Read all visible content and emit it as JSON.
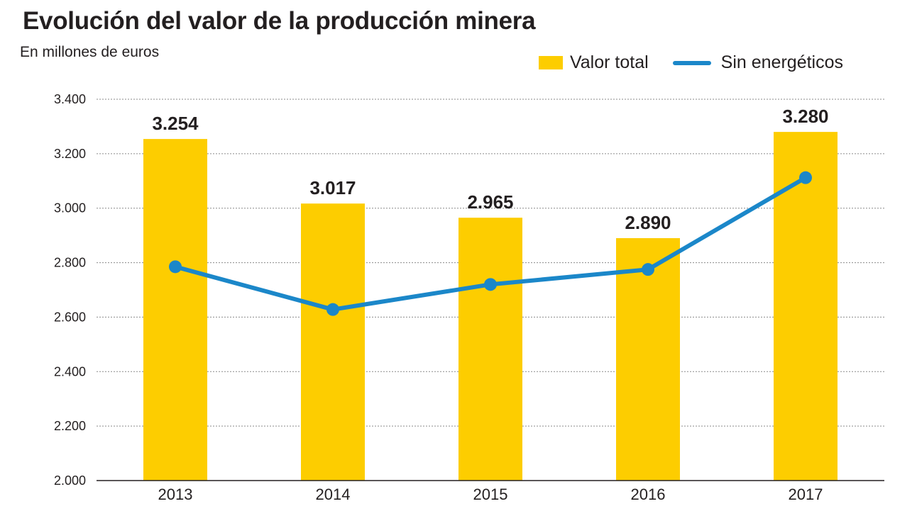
{
  "chart_data": {
    "type": "bar",
    "title": "Evolución del valor de la producción minera",
    "subtitle": "En millones de euros",
    "categories": [
      "2013",
      "2014",
      "2015",
      "2016",
      "2017"
    ],
    "series": [
      {
        "name": "Valor total",
        "type": "bar",
        "color": "#fdcd00",
        "values": [
          3254,
          3017,
          2965,
          2890,
          3280
        ],
        "labels": [
          "3.254",
          "3.017",
          "2.965",
          "2.890",
          "3.280"
        ]
      },
      {
        "name": "Sin energéticos",
        "type": "line",
        "color": "#1b87c9",
        "values": [
          2785,
          2628,
          2720,
          2775,
          3112
        ]
      }
    ],
    "ylim": [
      2000,
      3400
    ],
    "yticks": [
      2000,
      2200,
      2400,
      2600,
      2800,
      3000,
      3200,
      3400
    ],
    "ytick_labels": [
      "2.000",
      "2.200",
      "2.400",
      "2.600",
      "2.800",
      "3.000",
      "3.200",
      "3.400"
    ],
    "xlabel": "",
    "ylabel": "",
    "grid": "horizontal dotted",
    "legend_position": "top-right"
  }
}
